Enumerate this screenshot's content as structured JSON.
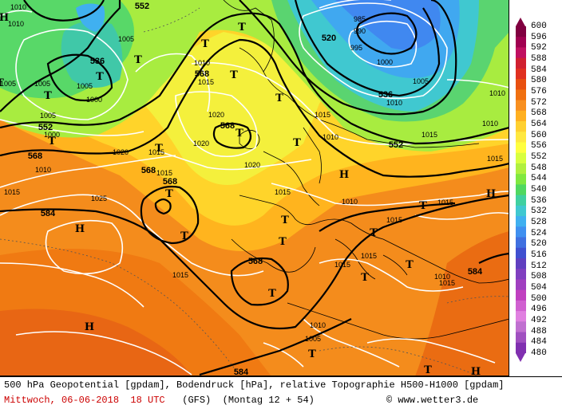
{
  "map": {
    "geopotential_labels": [
      "552",
      "536",
      "552",
      "568",
      "568",
      "568",
      "584",
      "520",
      "536",
      "552",
      "568",
      "568",
      "584",
      "584",
      "568"
    ],
    "pressure_labels": [
      "1010",
      "1010",
      "1005",
      "1005",
      "1005",
      "1010",
      "1000",
      "985",
      "990",
      "995",
      "1000",
      "1005",
      "1010",
      "1015",
      "1010",
      "1010",
      "1005",
      "1000",
      "1015",
      "1020",
      "1015",
      "1020",
      "1015",
      "1010",
      "1010",
      "1025",
      "1020",
      "1015",
      "1020",
      "1015",
      "1015",
      "1015",
      "1015",
      "1015",
      "1015",
      "1015",
      "1010",
      "1005",
      "1015",
      "1015",
      "1010",
      "1010",
      "1005"
    ],
    "high_symbol": "H",
    "low_symbol": "T"
  },
  "legend": {
    "unit": "gpdam",
    "levels": [
      "600",
      "596",
      "592",
      "588",
      "584",
      "580",
      "576",
      "572",
      "568",
      "564",
      "560",
      "556",
      "552",
      "548",
      "544",
      "540",
      "536",
      "532",
      "528",
      "524",
      "520",
      "516",
      "512",
      "508",
      "504",
      "500",
      "496",
      "492",
      "488",
      "484",
      "480"
    ],
    "colors": [
      "#800040",
      "#a00050",
      "#c01060",
      "#d02030",
      "#e03020",
      "#e85010",
      "#f07010",
      "#f89020",
      "#ffb020",
      "#ffd030",
      "#ffe840",
      "#ffff40",
      "#d8ff40",
      "#b0f040",
      "#80e840",
      "#50d860",
      "#40d0a0",
      "#40c8d0",
      "#40b0f0",
      "#4090f0",
      "#4070e0",
      "#4050d0",
      "#6040c0",
      "#8040c0",
      "#a040c0",
      "#c040c0",
      "#d060d0",
      "#e080e0",
      "#c070d0",
      "#a050c0",
      "#8030b0"
    ]
  },
  "caption": {
    "line1": "500 hPa Geopotential [gpdam], Bodendruck [hPa], relative Topographie H500-H1000 [gpdam]",
    "date": "Mittwoch, 06-06-2018  18 UTC",
    "model": "(GFS)  (Montag 12 + 54)",
    "copyright": "© www.wetter3.de"
  }
}
